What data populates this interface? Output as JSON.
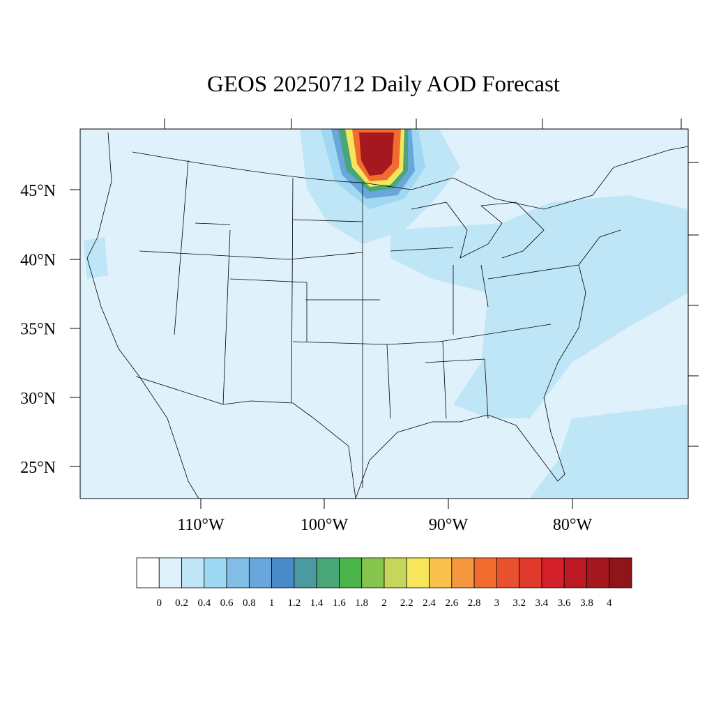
{
  "map": {
    "title": "GEOS 20250712 Daily AOD Forecast",
    "lat_labels": [
      "45°N",
      "40°N",
      "35°N",
      "30°N",
      "25°N"
    ],
    "lon_labels": [
      "110°W",
      "100°W",
      "90°W",
      "80°W"
    ],
    "colorbar": {
      "colors": [
        "#ffffff",
        "#dff1fa",
        "#bfe6f7",
        "#9fd8f2",
        "#82bde6",
        "#68a6dc",
        "#4a8cca",
        "#4b9aa0",
        "#48a679",
        "#4bb54a",
        "#87c44e",
        "#c5d65a",
        "#f5e65c",
        "#f8c14c",
        "#f6983f",
        "#f26c30",
        "#e9502d",
        "#df3a2b",
        "#d21f2a",
        "#bb1a24",
        "#a6181f",
        "#8e1519"
      ],
      "levels": [
        0,
        0.2,
        0.4,
        0.6,
        0.8,
        1,
        1.2,
        1.4,
        1.6,
        1.8,
        2,
        2.2,
        2.4,
        2.6,
        2.8,
        3,
        3.2,
        3.4,
        3.6,
        3.8,
        4
      ]
    }
  }
}
